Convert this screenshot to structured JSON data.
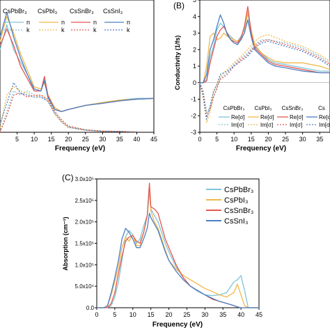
{
  "panels": {
    "A": {
      "letter": "",
      "xlabel": "Frequency (eV)",
      "xticks": [
        5,
        10,
        15,
        20,
        25,
        30,
        35,
        40,
        45
      ],
      "legend_materials": [
        "CsPbBr₃",
        "CsPbI₃",
        "CsSnBr₃",
        "CsSnI₃"
      ],
      "legend_n": "n",
      "legend_k": "k"
    },
    "B": {
      "letter": "(B)",
      "xlabel": "Frequency (eV)",
      "ylabel": "Conductivity (1/fs)",
      "xticks": [
        0,
        5,
        10,
        15,
        20,
        25,
        30,
        35
      ],
      "yticks": [
        -3,
        -2,
        -1,
        0,
        1,
        2,
        3,
        4,
        5
      ],
      "legend_materials": [
        "CsPbBr₃",
        "CsPbI₃",
        "CsSnBr₃",
        "Cs"
      ],
      "legend_re": "Re[σ]",
      "legend_im": "Im[σ]"
    },
    "C": {
      "letter": "(C)",
      "xlabel": "Frequency (eV)",
      "ylabel": "Absorption (cm⁻¹)",
      "xticks": [
        0,
        5,
        10,
        15,
        20,
        25,
        30,
        35,
        40,
        45
      ],
      "yticks": [
        "0.0",
        "5.0x10⁴",
        "1.0x10⁵",
        "1.5x10⁵",
        "2.0x10⁵",
        "2.5x10⁵",
        "3.0x10⁵"
      ],
      "legend": [
        "CsPbBr₃",
        "CsPbI₃",
        "CsSnBr₃",
        "CsSnI₃"
      ]
    }
  },
  "colors": {
    "CsPbBr3": "#7fc4d9",
    "CsPbI3": "#f0b84a",
    "CsSnBr3": "#e4574f",
    "CsSnI3": "#4a7fc4"
  },
  "chart_data": [
    {
      "panel": "A",
      "type": "line",
      "xlabel": "Frequency (eV)",
      "xlim": [
        0,
        45
      ],
      "ylim": [
        0,
        3.2
      ],
      "series": [
        {
          "name": "CsPbBr3",
          "quantity": "n",
          "x": [
            0,
            2,
            4,
            6,
            8,
            10,
            12,
            13,
            14,
            16,
            18,
            20,
            25,
            30,
            35,
            40,
            45
          ],
          "y": [
            2.0,
            2.6,
            2.0,
            1.7,
            1.4,
            1.0,
            1.0,
            1.3,
            0.85,
            0.55,
            0.5,
            0.55,
            0.65,
            0.72,
            0.78,
            0.82,
            0.82
          ]
        },
        {
          "name": "CsPbI3",
          "quantity": "n",
          "x": [
            0,
            2,
            4,
            6,
            8,
            10,
            12,
            13,
            14,
            16,
            18,
            20,
            25,
            30,
            35,
            40,
            45
          ],
          "y": [
            2.2,
            2.8,
            2.4,
            1.9,
            1.5,
            1.1,
            1.05,
            1.2,
            0.9,
            0.6,
            0.5,
            0.55,
            0.65,
            0.72,
            0.78,
            0.8,
            0.82
          ]
        },
        {
          "name": "CsSnBr3",
          "quantity": "n",
          "x": [
            0,
            2,
            4,
            6,
            8,
            10,
            12,
            13,
            14,
            16,
            18,
            20,
            25,
            30,
            35,
            40,
            45
          ],
          "y": [
            2.1,
            2.5,
            2.1,
            1.6,
            1.3,
            1.0,
            1.0,
            1.35,
            0.9,
            0.55,
            0.5,
            0.55,
            0.65,
            0.7,
            0.76,
            0.8,
            0.82
          ]
        },
        {
          "name": "CsSnI3",
          "quantity": "n",
          "x": [
            0,
            2,
            4,
            6,
            8,
            10,
            12,
            13,
            14,
            16,
            18,
            20,
            25,
            30,
            35,
            40,
            45
          ],
          "y": [
            2.3,
            2.9,
            2.3,
            1.8,
            1.4,
            1.05,
            1.0,
            1.25,
            0.85,
            0.55,
            0.5,
            0.55,
            0.65,
            0.7,
            0.76,
            0.8,
            0.82
          ]
        },
        {
          "name": "CsPbBr3",
          "quantity": "k",
          "x": [
            0,
            2,
            4,
            6,
            8,
            10,
            12,
            14,
            16,
            18,
            20,
            25,
            30,
            35,
            40
          ],
          "y": [
            0.0,
            0.5,
            1.0,
            0.9,
            1.0,
            0.9,
            0.85,
            0.8,
            0.5,
            0.3,
            0.15,
            0.06,
            0.03,
            0.02,
            0.01
          ]
        },
        {
          "name": "CsPbI3",
          "quantity": "k",
          "x": [
            0,
            2,
            4,
            6,
            8,
            10,
            12,
            14,
            16,
            18,
            20,
            25,
            30,
            35,
            40
          ],
          "y": [
            0.1,
            0.9,
            1.1,
            1.0,
            0.95,
            0.85,
            0.9,
            0.75,
            0.45,
            0.25,
            0.12,
            0.05,
            0.02,
            0.02,
            0.01
          ]
        },
        {
          "name": "CsSnBr3",
          "quantity": "k",
          "x": [
            0,
            2,
            4,
            6,
            8,
            10,
            12,
            14,
            16,
            18,
            20,
            25,
            30,
            35,
            40
          ],
          "y": [
            0.0,
            0.4,
            0.9,
            0.95,
            0.85,
            0.9,
            0.9,
            0.8,
            0.5,
            0.3,
            0.15,
            0.06,
            0.03,
            0.02,
            0.01
          ]
        },
        {
          "name": "CsSnI3",
          "quantity": "k",
          "x": [
            0,
            2,
            4,
            6,
            8,
            10,
            12,
            14,
            16,
            18,
            20,
            25,
            30,
            35,
            40
          ],
          "y": [
            0.2,
            0.7,
            1.2,
            0.95,
            0.9,
            0.85,
            0.85,
            0.75,
            0.45,
            0.25,
            0.12,
            0.05,
            0.02,
            0.02,
            0.01
          ]
        }
      ]
    },
    {
      "panel": "B",
      "type": "line",
      "xlabel": "Frequency (eV)",
      "ylabel": "Conductivity (1/fs)",
      "xlim": [
        0,
        38
      ],
      "ylim": [
        -3,
        5
      ],
      "series": [
        {
          "name": "CsPbBr3",
          "quantity": "Re[σ]",
          "x": [
            0,
            1,
            2,
            3,
            4,
            5,
            6,
            7,
            8,
            9,
            10,
            11,
            12,
            13,
            14,
            15,
            16,
            18,
            20,
            22,
            25,
            30,
            35,
            38
          ],
          "y": [
            0,
            0,
            0.2,
            1.5,
            2.2,
            3.2,
            3.6,
            3.4,
            3.0,
            2.8,
            2.6,
            2.5,
            2.8,
            3.2,
            4.2,
            3.0,
            2.2,
            1.8,
            1.4,
            1.2,
            1.1,
            0.9,
            0.7,
            0.7
          ]
        },
        {
          "name": "CsPbI3",
          "quantity": "Re[σ]",
          "x": [
            0,
            1,
            2,
            3,
            4,
            5,
            6,
            7,
            8,
            9,
            10,
            11,
            12,
            13,
            14,
            15,
            16,
            18,
            20,
            22,
            25,
            30,
            35,
            38
          ],
          "y": [
            0,
            0,
            1.0,
            2.8,
            3.0,
            2.6,
            2.7,
            3.0,
            2.8,
            2.7,
            2.6,
            2.5,
            2.7,
            3.0,
            4.3,
            3.2,
            2.3,
            1.8,
            1.5,
            1.3,
            1.2,
            1.2,
            1.0,
            0.8
          ]
        },
        {
          "name": "CsSnBr3",
          "quantity": "Re[σ]",
          "x": [
            0,
            1,
            2,
            3,
            4,
            5,
            6,
            7,
            8,
            9,
            10,
            11,
            12,
            13,
            14,
            15,
            16,
            18,
            20,
            22,
            25,
            30,
            35,
            38
          ],
          "y": [
            0,
            0,
            0.1,
            1.2,
            2.0,
            2.8,
            3.2,
            3.4,
            3.0,
            2.6,
            2.5,
            2.4,
            2.7,
            3.4,
            4.6,
            3.0,
            2.1,
            1.7,
            1.3,
            1.1,
            1.0,
            0.8,
            0.6,
            0.6
          ]
        },
        {
          "name": "CsSnI3",
          "quantity": "Re[σ]",
          "x": [
            0,
            1,
            2,
            3,
            4,
            5,
            6,
            7,
            8,
            9,
            10,
            11,
            12,
            13,
            14,
            15,
            16,
            18,
            20,
            22,
            25,
            30,
            35,
            38
          ],
          "y": [
            0,
            0,
            0.5,
            2.0,
            2.6,
            3.4,
            4.1,
            3.6,
            2.9,
            2.6,
            2.4,
            2.3,
            2.6,
            3.0,
            3.8,
            2.8,
            2.0,
            1.6,
            1.2,
            1.0,
            0.9,
            0.7,
            0.6,
            0.6
          ]
        },
        {
          "name": "CsPbBr3",
          "quantity": "Im[σ]",
          "x": [
            0,
            1,
            2,
            3,
            4,
            5,
            6,
            8,
            10,
            12,
            14,
            16,
            18,
            20,
            25,
            30,
            35,
            38
          ],
          "y": [
            0,
            -0.5,
            -1.8,
            -1.5,
            -0.8,
            -0.4,
            0.3,
            0.6,
            1.1,
            1.5,
            1.8,
            2.3,
            2.6,
            2.6,
            2.4,
            2.1,
            1.6,
            1.2
          ]
        },
        {
          "name": "CsPbI3",
          "quantity": "Im[σ]",
          "x": [
            0,
            1,
            2,
            3,
            4,
            5,
            6,
            8,
            10,
            12,
            14,
            16,
            18,
            20,
            25,
            30,
            35,
            38
          ],
          "y": [
            0,
            -1.0,
            -2.4,
            -1.8,
            -0.6,
            -0.2,
            0.4,
            0.8,
            1.2,
            1.6,
            2.0,
            2.5,
            2.8,
            2.9,
            2.5,
            2.2,
            1.7,
            1.3
          ]
        },
        {
          "name": "CsSnBr3",
          "quantity": "Im[σ]",
          "x": [
            0,
            1,
            2,
            3,
            4,
            5,
            6,
            8,
            10,
            12,
            14,
            16,
            18,
            20,
            25,
            30,
            35,
            38
          ],
          "y": [
            0,
            -0.6,
            -2.0,
            -1.6,
            -0.9,
            -0.3,
            0.2,
            0.5,
            1.0,
            1.4,
            1.7,
            2.2,
            2.5,
            2.6,
            2.3,
            2.0,
            1.5,
            1.1
          ]
        },
        {
          "name": "CsSnI3",
          "quantity": "Im[σ]",
          "x": [
            0,
            1,
            2,
            3,
            4,
            5,
            6,
            8,
            10,
            12,
            14,
            16,
            18,
            20,
            25,
            30,
            35,
            38
          ],
          "y": [
            0,
            -0.8,
            -2.2,
            -1.4,
            -0.5,
            -0.1,
            0.5,
            0.7,
            1.0,
            1.3,
            1.6,
            2.1,
            2.4,
            2.5,
            2.2,
            1.9,
            1.4,
            1.0
          ]
        }
      ]
    },
    {
      "panel": "C",
      "type": "line",
      "xlabel": "Frequency (eV)",
      "ylabel": "Absorption (cm⁻¹)",
      "xlim": [
        0,
        45
      ],
      "ylim": [
        0,
        300000
      ],
      "series": [
        {
          "name": "CsPbBr3",
          "x": [
            0,
            1,
            2,
            3,
            4,
            5,
            6,
            7,
            8,
            9,
            10,
            11,
            12,
            13,
            14,
            14.6,
            15,
            16,
            17,
            18,
            19,
            20,
            22,
            24,
            26,
            28,
            30,
            32,
            34,
            36,
            38,
            39,
            40,
            41,
            42,
            45
          ],
          "y": [
            0,
            0,
            0,
            0,
            5000,
            25000,
            60000,
            110000,
            165000,
            180000,
            170000,
            150000,
            160000,
            190000,
            215000,
            270000,
            230000,
            215000,
            200000,
            175000,
            150000,
            130000,
            95000,
            70000,
            50000,
            38000,
            30000,
            28000,
            30000,
            35000,
            60000,
            65000,
            75000,
            40000,
            0,
            0
          ]
        },
        {
          "name": "CsPbI3",
          "x": [
            0,
            1,
            2,
            3,
            4,
            5,
            6,
            7,
            8,
            9,
            10,
            11,
            12,
            13,
            14,
            14.6,
            15,
            16,
            17,
            18,
            19,
            20,
            22,
            24,
            26,
            28,
            30,
            32,
            34,
            36,
            38,
            39,
            40,
            41,
            42,
            45
          ],
          "y": [
            0,
            0,
            0,
            3000,
            30000,
            60000,
            95000,
            140000,
            165000,
            155000,
            170000,
            145000,
            145000,
            175000,
            215000,
            285000,
            225000,
            200000,
            185000,
            160000,
            135000,
            110000,
            90000,
            75000,
            65000,
            55000,
            45000,
            38000,
            30000,
            25000,
            35000,
            55000,
            30000,
            5000,
            0,
            0
          ]
        },
        {
          "name": "CsSnBr3",
          "x": [
            0,
            1,
            2,
            3,
            4,
            5,
            6,
            7,
            8,
            9,
            10,
            11,
            12,
            13,
            14,
            14.6,
            15,
            16,
            17,
            18,
            19,
            20,
            22,
            24,
            26,
            28,
            30,
            32,
            34,
            36,
            38,
            39,
            40,
            41,
            42,
            45
          ],
          "y": [
            0,
            0,
            0,
            0,
            10000,
            35000,
            80000,
            120000,
            155000,
            165000,
            168000,
            155000,
            150000,
            175000,
            215000,
            290000,
            235000,
            230000,
            220000,
            190000,
            160000,
            140000,
            100000,
            70000,
            50000,
            40000,
            30000,
            20000,
            15000,
            10000,
            5000,
            2000,
            0,
            0,
            0,
            0
          ]
        },
        {
          "name": "CsSnI3",
          "x": [
            0,
            1,
            2,
            3,
            4,
            5,
            6,
            7,
            8,
            9,
            10,
            11,
            12,
            13,
            14,
            14.6,
            15,
            16,
            17,
            18,
            19,
            20,
            22,
            24,
            26,
            28,
            30,
            32,
            34,
            36,
            38,
            39,
            40,
            41,
            42,
            45
          ],
          "y": [
            0,
            0,
            0,
            5000,
            35000,
            70000,
            110000,
            160000,
            185000,
            175000,
            160000,
            140000,
            140000,
            160000,
            185000,
            220000,
            210000,
            195000,
            180000,
            155000,
            130000,
            110000,
            85000,
            65000,
            50000,
            40000,
            30000,
            22000,
            15000,
            10000,
            5000,
            2000,
            0,
            0,
            0,
            0
          ]
        }
      ]
    }
  ]
}
